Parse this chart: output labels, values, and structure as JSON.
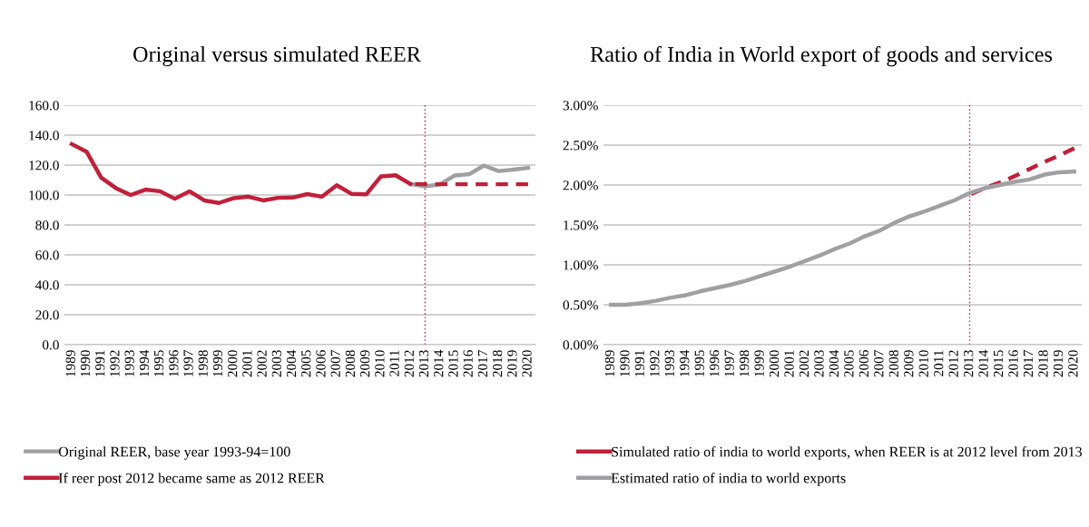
{
  "chart_data": [
    {
      "type": "line",
      "title": "Original versus simulated REER",
      "categories": [
        "1989",
        "1990",
        "1991",
        "1992",
        "1993",
        "1994",
        "1995",
        "1996",
        "1997",
        "1998",
        "1999",
        "2000",
        "2001",
        "2002",
        "2003",
        "2004",
        "2005",
        "2006",
        "2007",
        "2008",
        "2009",
        "2010",
        "2011",
        "2012",
        "2013",
        "2014",
        "2015",
        "2016",
        "2017",
        "2018",
        "2019",
        "2020"
      ],
      "series": [
        {
          "name": "Original REER, base year 1993-94=100",
          "color": "#a0a0a4",
          "line_style": "solid",
          "values": [
            null,
            null,
            null,
            null,
            null,
            null,
            null,
            null,
            null,
            null,
            null,
            null,
            null,
            null,
            null,
            null,
            null,
            null,
            null,
            null,
            null,
            null,
            null,
            107.4,
            105.7,
            107.1,
            113.0,
            113.9,
            119.7,
            116.0,
            117.0,
            118.1
          ]
        },
        {
          "name": "If reer post 2012 became same as 2012 REER",
          "color": "#c0203a",
          "line_style": "solid",
          "values": [
            134.0,
            129.0,
            111.6,
            104.6,
            100.0,
            103.6,
            102.5,
            97.5,
            102.5,
            96.4,
            94.7,
            97.9,
            98.9,
            96.4,
            98.1,
            98.3,
            100.6,
            98.9,
            106.5,
            100.8,
            100.4,
            112.4,
            113.2,
            107.4,
            null,
            null,
            null,
            null,
            null,
            null,
            null,
            null
          ]
        },
        {
          "color": "#c0203a",
          "line_style": "dashed",
          "values": [
            null,
            null,
            null,
            null,
            null,
            null,
            null,
            null,
            null,
            null,
            null,
            null,
            null,
            null,
            null,
            null,
            null,
            null,
            null,
            null,
            null,
            null,
            null,
            107.4,
            107.2,
            107.2,
            107.2,
            107.2,
            107.2,
            107.2,
            107.2,
            107.2
          ]
        }
      ],
      "ylim": [
        0,
        160
      ],
      "yticks": [
        {
          "value": 0,
          "label": "0.0"
        },
        {
          "value": 20,
          "label": "20.0"
        },
        {
          "value": 40,
          "label": "40.0"
        },
        {
          "value": 60,
          "label": "60.0"
        },
        {
          "value": 80,
          "label": "80.0"
        },
        {
          "value": 100,
          "label": "100.0"
        },
        {
          "value": 120,
          "label": "120.0"
        },
        {
          "value": 140,
          "label": "140.0"
        },
        {
          "value": 160,
          "label": "160.0"
        }
      ],
      "grid": "y",
      "legend": "bottom",
      "ref_lines": [
        {
          "axis": "x",
          "value": "2013",
          "color": "#c0203a",
          "line_style": "dotted"
        }
      ]
    },
    {
      "type": "line",
      "title": "Ratio of India in World export of goods and services",
      "categories": [
        "1989",
        "1990",
        "1991",
        "1992",
        "1993",
        "1994",
        "1995",
        "1996",
        "1997",
        "1998",
        "1999",
        "2000",
        "2001",
        "2002",
        "2003",
        "2004",
        "2005",
        "2006",
        "2007",
        "2008",
        "2009",
        "2010",
        "2011",
        "2012",
        "2013",
        "2014",
        "2015",
        "2016",
        "2017",
        "2018",
        "2019",
        "2020"
      ],
      "series": [
        {
          "name": "Simulated ratio of india to world exports, when REER is at 2012 level from 2013",
          "color": "#c0203a",
          "line_style": "dashed",
          "values": [
            null,
            null,
            null,
            null,
            null,
            null,
            null,
            null,
            null,
            null,
            null,
            null,
            null,
            null,
            null,
            null,
            null,
            null,
            null,
            null,
            null,
            null,
            null,
            null,
            1.88,
            1.96,
            2.03,
            2.11,
            2.2,
            2.29,
            2.37,
            2.46
          ]
        },
        {
          "name": "Estimated ratio of india to world exports",
          "color": "#a0a0a4",
          "line_style": "solid",
          "values": [
            0.5,
            0.5,
            0.52,
            0.55,
            0.59,
            0.62,
            0.67,
            0.71,
            0.75,
            0.8,
            0.86,
            0.92,
            0.98,
            1.05,
            1.12,
            1.2,
            1.27,
            1.36,
            1.43,
            1.53,
            1.61,
            1.67,
            1.74,
            1.81,
            1.9,
            1.96,
            2.0,
            2.04,
            2.07,
            2.13,
            2.16,
            2.17
          ]
        }
      ],
      "ylim": [
        0,
        3
      ],
      "yticks": [
        {
          "value": 0,
          "label": "0.00%"
        },
        {
          "value": 0.5,
          "label": "0.50%"
        },
        {
          "value": 1,
          "label": "1.00%"
        },
        {
          "value": 1.5,
          "label": "1.50%"
        },
        {
          "value": 2,
          "label": "2.00%"
        },
        {
          "value": 2.5,
          "label": "2.50%"
        },
        {
          "value": 3,
          "label": "3.00%"
        }
      ],
      "grid": "y",
      "legend": "bottom",
      "ref_lines": [
        {
          "axis": "x",
          "value": "2013",
          "color": "#c0203a",
          "line_style": "dotted"
        }
      ]
    }
  ]
}
